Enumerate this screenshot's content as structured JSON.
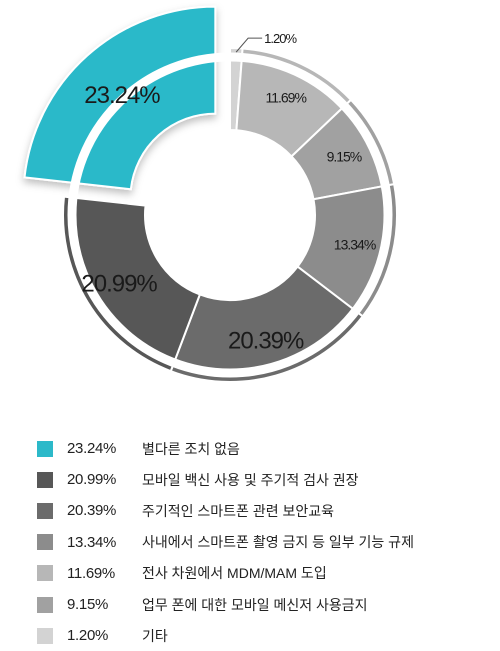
{
  "chart_data": {
    "type": "pie",
    "style": "donut, largest slice exploded",
    "legend_position": "bottom",
    "slices": [
      {
        "label": "별다른 조치 없음",
        "value": 23.24,
        "value_label": "23.24%",
        "color": "#2cb9c9"
      },
      {
        "label": "모바일 백신 사용 및 주기적 검사 권장",
        "value": 20.99,
        "value_label": "20.99%",
        "color": "#575757"
      },
      {
        "label": "주기적인 스마트폰 관련 보안교육",
        "value": 20.39,
        "value_label": "20.39%",
        "color": "#6b6b6b"
      },
      {
        "label": "사내에서 스마트폰 촬영 금지 등 일부 기능 규제",
        "value": 13.34,
        "value_label": "13.34%",
        "color": "#8c8c8c"
      },
      {
        "label": "전사 차원에서 MDM/MAM 도입",
        "value": 11.69,
        "value_label": "11.69%",
        "color": "#b7b7b7"
      },
      {
        "label": "업무 폰에 대한 모바일 메신저 사용금지",
        "value": 9.15,
        "value_label": "9.15%",
        "color": "#a1a1a1"
      },
      {
        "label": "기타",
        "value": 1.2,
        "value_label": "1.20%",
        "color": "#d3d3d3"
      }
    ]
  }
}
